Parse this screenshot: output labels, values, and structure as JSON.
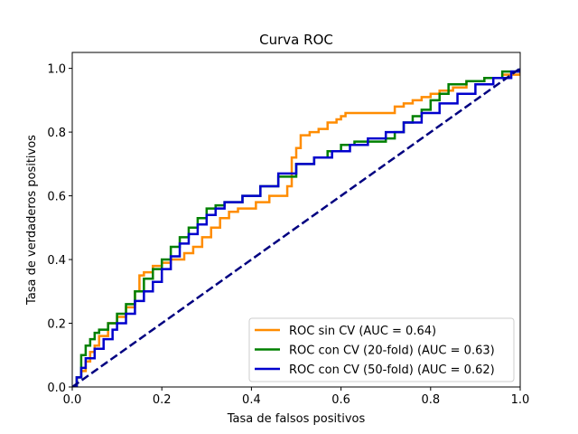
{
  "chart_data": {
    "type": "line",
    "title": "Curva ROC",
    "xlabel": "Tasa de falsos positivos",
    "ylabel": "Tasa de verdaderos positivos",
    "xlim": [
      0,
      1
    ],
    "ylim": [
      0,
      1.05
    ],
    "xticks": [
      "0.0",
      "0.2",
      "0.4",
      "0.6",
      "0.8",
      "1.0"
    ],
    "yticks": [
      "0.0",
      "0.2",
      "0.4",
      "0.6",
      "0.8",
      "1.0"
    ],
    "grid": false,
    "legend_position": "lower-right",
    "series": [
      {
        "name": "ROC sin CV (AUC = 0.64)",
        "color": "#ff8c00",
        "style": "step",
        "x": [
          0,
          0.01,
          0.02,
          0.03,
          0.04,
          0.05,
          0.06,
          0.08,
          0.1,
          0.12,
          0.14,
          0.15,
          0.16,
          0.18,
          0.2,
          0.22,
          0.25,
          0.27,
          0.29,
          0.31,
          0.33,
          0.35,
          0.37,
          0.41,
          0.44,
          0.48,
          0.49,
          0.5,
          0.51,
          0.53,
          0.55,
          0.57,
          0.59,
          0.6,
          0.61,
          0.63,
          0.65,
          0.7,
          0.72,
          0.74,
          0.76,
          0.78,
          0.8,
          0.82,
          0.85,
          0.88,
          0.92,
          0.96,
          1.0
        ],
        "y": [
          0,
          0.03,
          0.05,
          0.08,
          0.11,
          0.13,
          0.16,
          0.2,
          0.22,
          0.25,
          0.3,
          0.35,
          0.36,
          0.38,
          0.39,
          0.4,
          0.42,
          0.44,
          0.47,
          0.5,
          0.53,
          0.55,
          0.56,
          0.58,
          0.6,
          0.63,
          0.72,
          0.75,
          0.79,
          0.8,
          0.81,
          0.83,
          0.84,
          0.85,
          0.86,
          0.86,
          0.86,
          0.86,
          0.88,
          0.89,
          0.9,
          0.91,
          0.92,
          0.93,
          0.94,
          0.96,
          0.97,
          0.98,
          0.99
        ]
      },
      {
        "name": "ROC con CV (20-fold) (AUC = 0.63)",
        "color": "#008000",
        "style": "step",
        "x": [
          0,
          0.01,
          0.02,
          0.03,
          0.04,
          0.05,
          0.06,
          0.08,
          0.1,
          0.12,
          0.14,
          0.16,
          0.18,
          0.2,
          0.22,
          0.24,
          0.26,
          0.28,
          0.3,
          0.32,
          0.34,
          0.38,
          0.42,
          0.46,
          0.5,
          0.54,
          0.57,
          0.6,
          0.63,
          0.66,
          0.7,
          0.72,
          0.74,
          0.76,
          0.78,
          0.8,
          0.82,
          0.84,
          0.88,
          0.92,
          0.96,
          1.0
        ],
        "y": [
          0,
          0.03,
          0.1,
          0.13,
          0.15,
          0.17,
          0.18,
          0.2,
          0.23,
          0.26,
          0.3,
          0.34,
          0.37,
          0.4,
          0.44,
          0.47,
          0.5,
          0.53,
          0.56,
          0.57,
          0.58,
          0.6,
          0.63,
          0.66,
          0.7,
          0.72,
          0.74,
          0.76,
          0.77,
          0.77,
          0.78,
          0.8,
          0.83,
          0.85,
          0.87,
          0.9,
          0.92,
          0.95,
          0.96,
          0.97,
          0.99,
          1.0
        ]
      },
      {
        "name": "ROC con CV (50-fold) (AUC = 0.62)",
        "color": "#0000cd",
        "style": "step",
        "x": [
          0,
          0.01,
          0.02,
          0.03,
          0.05,
          0.07,
          0.09,
          0.1,
          0.12,
          0.14,
          0.16,
          0.18,
          0.2,
          0.22,
          0.24,
          0.26,
          0.28,
          0.3,
          0.32,
          0.34,
          0.38,
          0.42,
          0.46,
          0.5,
          0.54,
          0.58,
          0.62,
          0.66,
          0.7,
          0.74,
          0.78,
          0.82,
          0.86,
          0.9,
          0.94,
          0.98,
          1.0
        ],
        "y": [
          0,
          0.03,
          0.06,
          0.09,
          0.12,
          0.15,
          0.18,
          0.2,
          0.23,
          0.27,
          0.3,
          0.33,
          0.37,
          0.41,
          0.45,
          0.48,
          0.51,
          0.54,
          0.56,
          0.58,
          0.6,
          0.63,
          0.67,
          0.7,
          0.72,
          0.74,
          0.76,
          0.78,
          0.8,
          0.83,
          0.86,
          0.89,
          0.92,
          0.95,
          0.97,
          0.99,
          1.0
        ]
      },
      {
        "name": "",
        "color": "#000080",
        "style": "dashed",
        "x": [
          0,
          1
        ],
        "y": [
          0,
          1
        ]
      }
    ]
  }
}
